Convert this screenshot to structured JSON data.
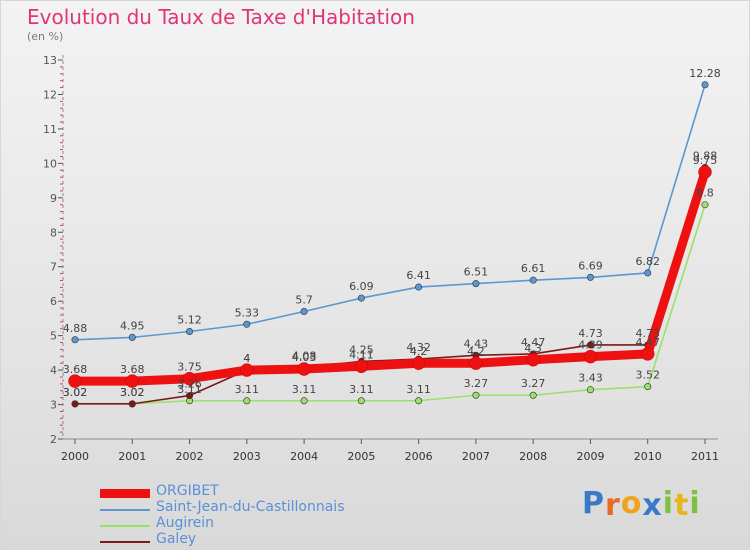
{
  "title": "Evolution du Taux de Taxe d'Habitation",
  "subtitle": "(en %)",
  "chart_data": {
    "type": "line",
    "x": [
      "2000",
      "2001",
      "2002",
      "2003",
      "2004",
      "2005",
      "2006",
      "2007",
      "2008",
      "2009",
      "2010",
      "2011"
    ],
    "ylim": [
      2,
      13
    ],
    "yticks": [
      "2",
      "3",
      "4",
      "5",
      "6",
      "7",
      "8",
      "9",
      "10",
      "11",
      "12",
      "13"
    ],
    "grid": false,
    "legend_position": "bottom-left",
    "series": [
      {
        "name": "Saint-Jean-du-Castillonnais",
        "color": "#5b97d2",
        "values": [
          4.88,
          4.95,
          5.12,
          5.33,
          5.7,
          6.09,
          6.41,
          6.51,
          6.61,
          6.69,
          6.82,
          12.28
        ],
        "labels": [
          "4.88",
          "4.95",
          "5.12",
          "5.33",
          "5.7",
          "6.09",
          "6.41",
          "6.51",
          "6.61",
          "6.69",
          "6.82",
          "12.28"
        ]
      },
      {
        "name": "Augirein",
        "color": "#9ae06a",
        "values": [
          3.02,
          3.02,
          3.11,
          3.11,
          3.11,
          3.11,
          3.11,
          3.27,
          3.27,
          3.43,
          3.52,
          8.8
        ],
        "labels": [
          "3.02",
          "3.02",
          "3.11",
          "3.11",
          "3.11",
          "3.11",
          "3.11",
          "3.27",
          "3.27",
          "3.43",
          "3.52",
          "8.8"
        ]
      },
      {
        "name": "Galey",
        "color": "#7a1a1a",
        "values": [
          3.02,
          3.02,
          3.26,
          4.0,
          4.08,
          4.25,
          4.32,
          4.43,
          4.47,
          4.73,
          4.73,
          9.88
        ],
        "labels": [
          "3.02",
          "3.02",
          "3.26",
          "4",
          "4.08",
          "4.25",
          "4.32",
          "4.43",
          "4.47",
          "4.73",
          "4.73",
          "9.88"
        ]
      },
      {
        "name": "ORGIBET",
        "color": "#ee1111",
        "values": [
          3.68,
          3.68,
          3.75,
          4.0,
          4.03,
          4.11,
          4.2,
          4.2,
          4.3,
          4.39,
          4.47,
          9.75
        ],
        "labels": [
          "3.68",
          "3.68",
          "3.75",
          "4",
          "4.03",
          "4.11",
          "4.2",
          "4.2",
          "4.3",
          "4.39",
          "4.47",
          "9.75"
        ]
      }
    ]
  },
  "legend": [
    {
      "name": "ORGIBET",
      "color": "#ee1111"
    },
    {
      "name": "Saint-Jean-du-Castillonnais",
      "color": "#5b97d2"
    },
    {
      "name": "Augirein",
      "color": "#9ae06a"
    },
    {
      "name": "Galey",
      "color": "#7a1a1a"
    }
  ],
  "brand": {
    "letters": [
      "P",
      "r",
      "o",
      "x",
      "i",
      "t",
      "i"
    ],
    "colors": [
      "#3a78c8",
      "#e86b1f",
      "#f2a31a",
      "#3a78c8",
      "#7cc242",
      "#e8b51a",
      "#7cc242"
    ]
  }
}
